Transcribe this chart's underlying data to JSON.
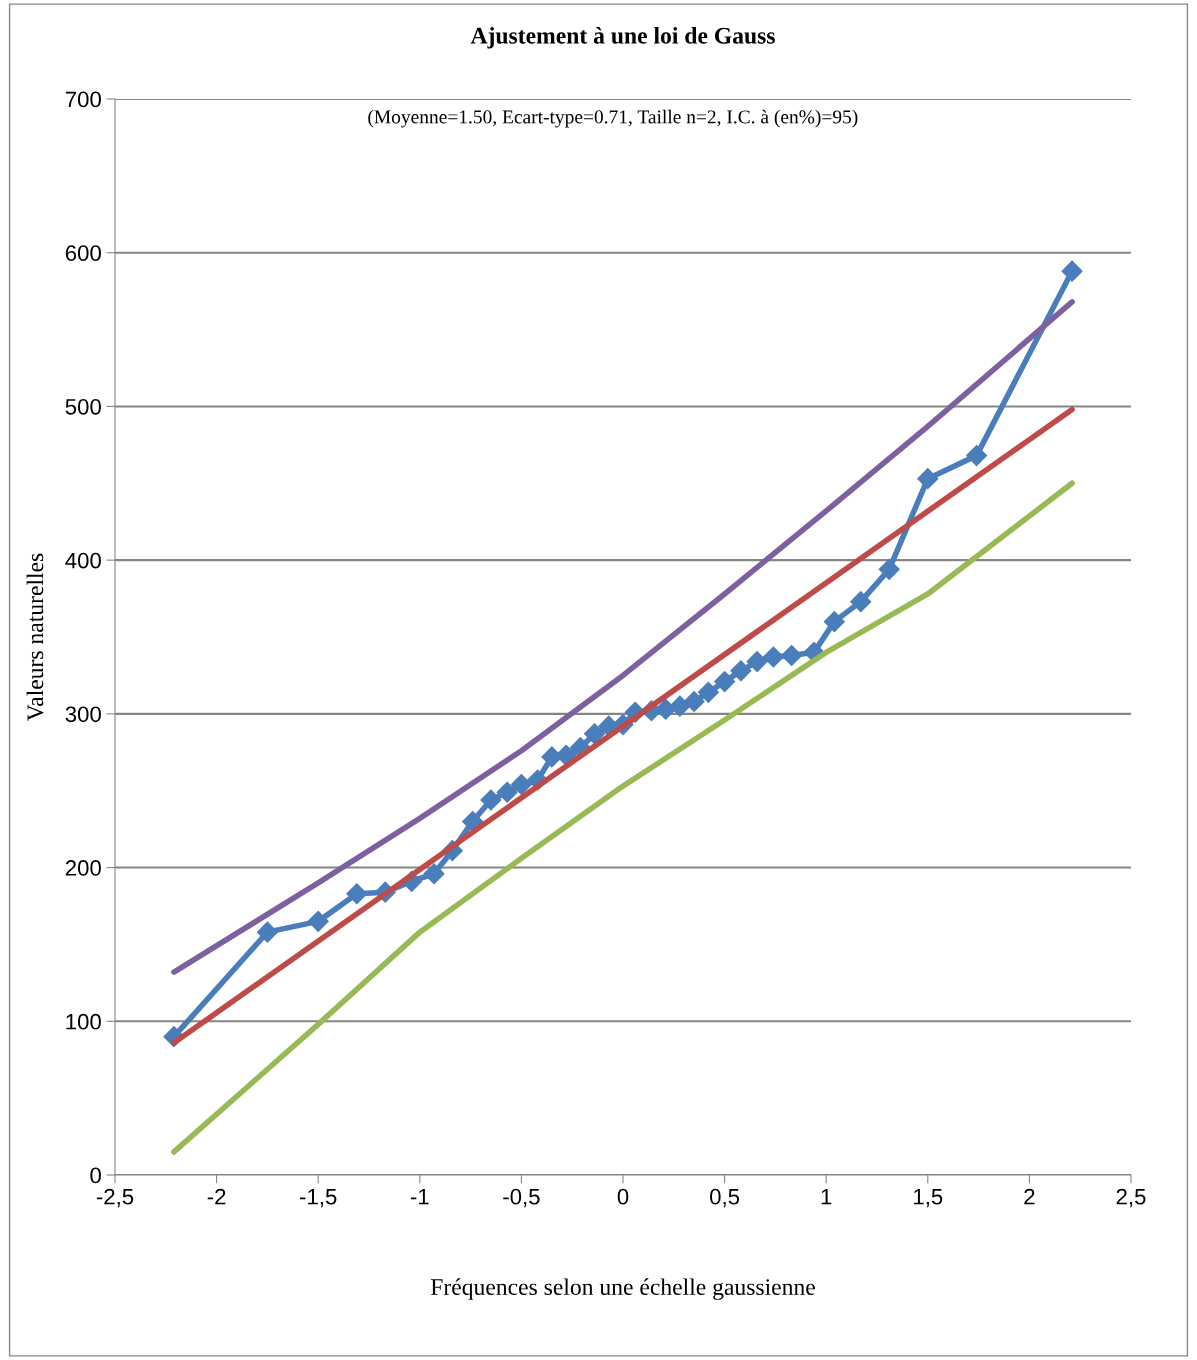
{
  "chart_data": {
    "type": "line",
    "title": "Ajustement à une loi de Gauss",
    "annotations": [
      "(Moyenne=1.50, Ecart-type=0.71, Taille n=2, I.C. à (en%)=95)"
    ],
    "xlabel": "Fréquences selon une échelle gaussienne",
    "ylabel": "Valeurs naturelles",
    "xlim": [
      -2.5,
      2.5
    ],
    "xticks": [
      {
        "value": -2.5,
        "label": "-2,5"
      },
      -2,
      {
        "value": -1.5,
        "label": "-1,5"
      },
      -1,
      {
        "value": -0.5,
        "label": "-0,5"
      },
      0,
      {
        "value": 0.5,
        "label": "0,5"
      },
      1,
      {
        "value": 1.5,
        "label": "1,5"
      },
      2,
      {
        "value": 2.5,
        "label": "2,5"
      }
    ],
    "ylim": [
      0,
      700
    ],
    "yticks": [
      0,
      100,
      200,
      300,
      400,
      500,
      600,
      700
    ],
    "grid": "y",
    "series": [
      {
        "color": "#4a7ebb",
        "marker": "diamond",
        "x": [
          -2.21,
          -1.75,
          -1.5,
          -1.31,
          -1.17,
          -1.04,
          -0.93,
          -0.84,
          -0.74,
          -0.65,
          -0.57,
          -0.5,
          -0.42,
          -0.35,
          -0.28,
          -0.21,
          -0.14,
          -0.07,
          0,
          0.06,
          0.14,
          0.21,
          0.28,
          0.35,
          0.42,
          0.5,
          0.58,
          0.66,
          0.74,
          0.83,
          0.94,
          1.04,
          1.17,
          1.31,
          1.5,
          1.74,
          2.21
        ],
        "values": [
          90,
          158,
          165,
          183,
          184,
          191,
          196,
          211,
          230,
          244,
          249,
          254,
          257,
          272,
          273,
          278,
          287,
          292,
          293,
          301,
          302,
          303,
          305,
          308,
          314,
          321,
          328,
          334,
          337,
          338,
          340,
          360,
          373,
          394,
          453,
          468,
          588
        ]
      },
      {
        "color": "#be4b48",
        "marker": "none",
        "x": [
          -2.21,
          2.21
        ],
        "values": [
          86,
          498
        ]
      },
      {
        "color": "#7d60a0",
        "marker": "none",
        "x": [
          -2.21,
          -1.5,
          -1,
          -0.5,
          0,
          0.5,
          1,
          1.5,
          2.21
        ],
        "values": [
          132,
          190,
          232,
          276,
          325,
          378,
          432,
          487,
          568
        ]
      },
      {
        "color": "#98b954",
        "marker": "none",
        "x": [
          -2.21,
          -1.5,
          -1,
          -0.5,
          0,
          0.5,
          1,
          1.5,
          2.21
        ],
        "values": [
          15,
          98,
          158,
          206,
          253,
          296,
          340,
          378,
          450
        ]
      }
    ]
  }
}
